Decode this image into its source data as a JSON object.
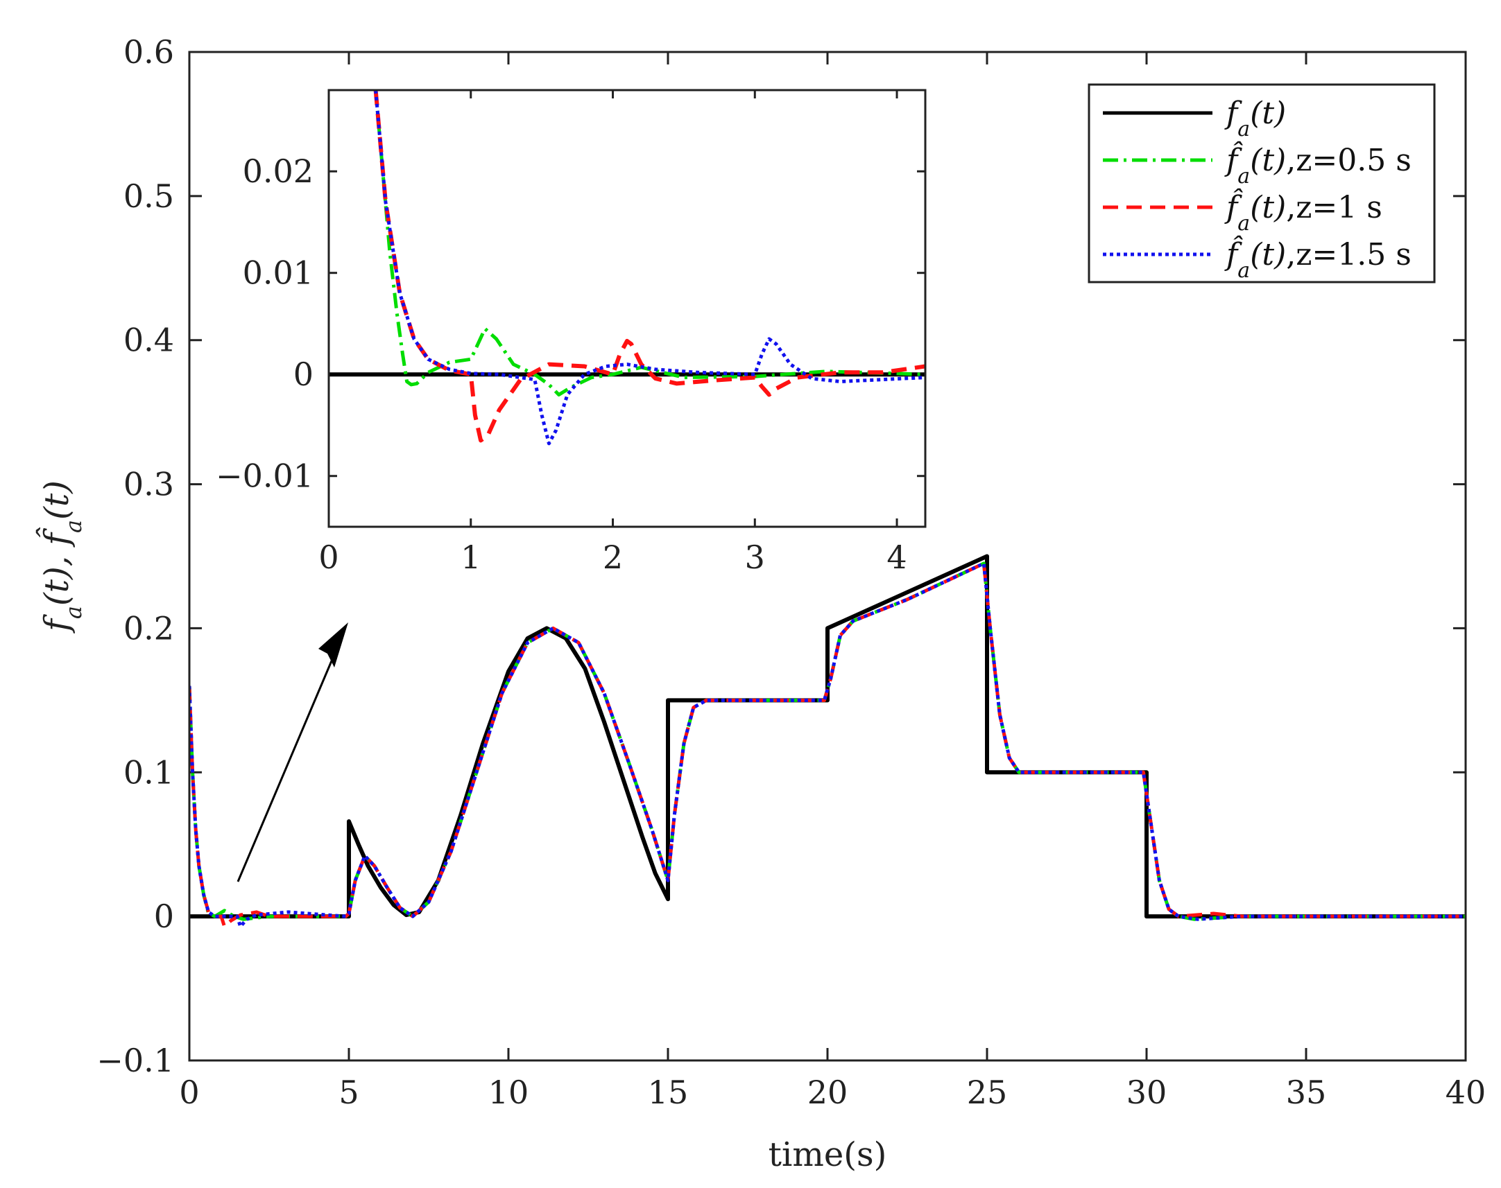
{
  "chart_data": [
    {
      "type": "line",
      "role": "main",
      "xlabel": "time(s)",
      "ylabel": "f_a(t), f̂_a(t)",
      "xlim": [
        0,
        40
      ],
      "ylim": [
        -0.1,
        0.6
      ],
      "xticks": [
        0,
        5,
        10,
        15,
        20,
        25,
        30,
        35,
        40
      ],
      "xtick_labels": [
        "0",
        "5",
        "10",
        "15",
        "20",
        "25",
        "30",
        "35",
        "40"
      ],
      "yticks": [
        -0.1,
        0,
        0.1,
        0.2,
        0.3,
        0.4,
        0.5,
        0.6
      ],
      "ytick_labels": [
        "−0.1",
        "0",
        "0.1",
        "0.2",
        "0.3",
        "0.4",
        "0.5",
        "0.6"
      ],
      "grid": false,
      "legend_position": "top-right",
      "series": [
        {
          "name": "f_a(t)",
          "legend_label": "fₐ(t)",
          "color": "#000000",
          "style": "solid",
          "x": [
            0,
            5,
            5,
            5.3,
            5.6,
            6.0,
            6.4,
            6.8,
            7.2,
            7.8,
            8.5,
            9.2,
            10.0,
            10.6,
            11.2,
            11.8,
            12.4,
            13.0,
            13.6,
            14.2,
            14.6,
            15,
            15,
            20,
            20,
            25,
            25,
            30,
            30,
            40
          ],
          "y": [
            0,
            0,
            0.066,
            0.05,
            0.035,
            0.02,
            0.008,
            0.001,
            0.003,
            0.025,
            0.07,
            0.12,
            0.17,
            0.193,
            0.2,
            0.193,
            0.172,
            0.135,
            0.095,
            0.055,
            0.03,
            0.012,
            0.15,
            0.15,
            0.2,
            0.25,
            0.1,
            0.1,
            0,
            0
          ]
        },
        {
          "name": "f_hat z=0.5",
          "legend_label": "f̂ₐ(t),z=0.5 s",
          "color": "#00dd00",
          "style": "dashdot",
          "x": [
            0,
            0.1,
            0.2,
            0.3,
            0.45,
            0.6,
            0.8,
            1.1,
            1.4,
            1.7,
            2.5,
            4.9,
            5.0,
            5.2,
            5.5,
            5.8,
            6.2,
            6.6,
            7.0,
            7.5,
            8.2,
            9.0,
            9.8,
            10.6,
            11.4,
            12.2,
            13.0,
            13.8,
            14.5,
            15.0,
            15.2,
            15.5,
            15.8,
            16.2,
            17.0,
            19.9,
            20.1,
            20.4,
            20.8,
            22.5,
            24.9,
            25.1,
            25.4,
            25.7,
            26.0,
            27.0,
            29.9,
            30.1,
            30.4,
            30.7,
            31.0,
            31.5,
            33,
            40
          ],
          "y": [
            0.16,
            0.1,
            0.06,
            0.035,
            0.015,
            0.002,
            0,
            0.004,
            0,
            -0.002,
            0,
            0,
            0.002,
            0.025,
            0.042,
            0.035,
            0.02,
            0.006,
            0,
            0.01,
            0.045,
            0.1,
            0.155,
            0.19,
            0.2,
            0.19,
            0.155,
            0.105,
            0.06,
            0.025,
            0.07,
            0.12,
            0.145,
            0.15,
            0.15,
            0.15,
            0.165,
            0.195,
            0.205,
            0.22,
            0.245,
            0.2,
            0.14,
            0.11,
            0.1,
            0.1,
            0.1,
            0.07,
            0.025,
            0.005,
            0,
            -0.002,
            0,
            0
          ]
        },
        {
          "name": "f_hat z=1",
          "legend_label": "f̂ₐ(t),z=1 s",
          "color": "#ff1111",
          "style": "dashed",
          "x": [
            0,
            0.1,
            0.2,
            0.3,
            0.45,
            0.6,
            0.8,
            1.0,
            1.1,
            1.3,
            1.6,
            2.1,
            2.5,
            4.9,
            5.0,
            5.2,
            5.5,
            5.8,
            6.2,
            6.6,
            7.0,
            7.5,
            8.2,
            9.0,
            9.8,
            10.6,
            11.4,
            12.2,
            13.0,
            13.8,
            14.5,
            15.0,
            15.2,
            15.5,
            15.8,
            16.2,
            17.0,
            19.9,
            20.1,
            20.4,
            20.8,
            22.5,
            24.9,
            25.1,
            25.4,
            25.7,
            26.0,
            27.0,
            29.9,
            30.1,
            30.4,
            30.7,
            31.0,
            32.1,
            33,
            40
          ],
          "y": [
            0.16,
            0.1,
            0.06,
            0.035,
            0.015,
            0.003,
            0,
            0,
            -0.007,
            -0.003,
            0.001,
            0.003,
            0,
            0,
            0.002,
            0.025,
            0.042,
            0.035,
            0.02,
            0.006,
            0,
            0.01,
            0.045,
            0.1,
            0.155,
            0.19,
            0.2,
            0.19,
            0.155,
            0.105,
            0.06,
            0.025,
            0.07,
            0.12,
            0.145,
            0.15,
            0.15,
            0.15,
            0.165,
            0.195,
            0.205,
            0.22,
            0.245,
            0.2,
            0.14,
            0.11,
            0.1,
            0.1,
            0.1,
            0.07,
            0.025,
            0.005,
            0,
            0.002,
            0,
            0
          ]
        },
        {
          "name": "f_hat z=1.5",
          "legend_label": "f̂ₐ(t),z=1.5 s",
          "color": "#1111ee",
          "style": "dotted",
          "x": [
            0,
            0.1,
            0.2,
            0.3,
            0.45,
            0.6,
            0.8,
            1.2,
            1.5,
            1.6,
            1.8,
            2.1,
            3.1,
            4.9,
            5.0,
            5.2,
            5.5,
            5.8,
            6.2,
            6.6,
            7.0,
            7.5,
            8.2,
            9.0,
            9.8,
            10.6,
            11.4,
            12.2,
            13.0,
            13.8,
            14.5,
            15.0,
            15.2,
            15.5,
            15.8,
            16.2,
            17.0,
            19.9,
            20.1,
            20.4,
            20.8,
            22.5,
            24.9,
            25.1,
            25.4,
            25.7,
            26.0,
            27.0,
            29.9,
            30.1,
            30.4,
            30.7,
            31.0,
            31.6,
            33,
            40
          ],
          "y": [
            0.16,
            0.1,
            0.06,
            0.035,
            0.015,
            0.003,
            0,
            0,
            0,
            -0.007,
            -0.002,
            0.001,
            0.003,
            0,
            0.002,
            0.025,
            0.042,
            0.035,
            0.02,
            0.006,
            0,
            0.01,
            0.045,
            0.1,
            0.155,
            0.19,
            0.2,
            0.19,
            0.155,
            0.105,
            0.06,
            0.025,
            0.07,
            0.12,
            0.145,
            0.15,
            0.15,
            0.15,
            0.165,
            0.195,
            0.205,
            0.22,
            0.245,
            0.2,
            0.14,
            0.11,
            0.1,
            0.1,
            0.1,
            0.07,
            0.025,
            0.005,
            0,
            -0.002,
            0,
            0
          ]
        }
      ]
    },
    {
      "type": "line",
      "role": "inset",
      "xlim": [
        0,
        4.2
      ],
      "ylim": [
        -0.015,
        0.028
      ],
      "xticks": [
        0,
        1,
        2,
        3,
        4
      ],
      "xtick_labels": [
        "0",
        "1",
        "2",
        "3",
        "4"
      ],
      "yticks": [
        -0.01,
        0,
        0.01,
        0.02
      ],
      "ytick_labels": [
        "−0.01",
        "0",
        "0.01",
        "0.02"
      ],
      "grid": false,
      "series": [
        {
          "name": "f_a(t)",
          "color": "#000000",
          "style": "solid",
          "x": [
            0,
            4.2
          ],
          "y": [
            0,
            0
          ]
        },
        {
          "name": "f_hat z=0.5",
          "color": "#00dd00",
          "style": "dashdot",
          "x": [
            0.33,
            0.38,
            0.43,
            0.48,
            0.52,
            0.55,
            0.58,
            0.62,
            0.7,
            0.85,
            1.0,
            1.05,
            1.1,
            1.18,
            1.3,
            1.45,
            1.55,
            1.62,
            1.7,
            1.85,
            2.0,
            2.2,
            2.5,
            3.0,
            3.5,
            4.2
          ],
          "y": [
            0.028,
            0.02,
            0.012,
            0.006,
            0.002,
            -0.0007,
            -0.001,
            -0.0009,
            0.0002,
            0.0012,
            0.0015,
            0.003,
            0.0045,
            0.0035,
            0.001,
            0,
            -0.001,
            -0.002,
            -0.0013,
            -0.0003,
            0,
            0.0007,
            -0.0003,
            -0.0002,
            0.0003,
            0
          ]
        },
        {
          "name": "f_hat z=1",
          "color": "#ff1111",
          "style": "dashed",
          "x": [
            0.33,
            0.4,
            0.5,
            0.6,
            0.7,
            0.85,
            1.0,
            1.03,
            1.07,
            1.12,
            1.2,
            1.35,
            1.55,
            1.8,
            2.0,
            2.05,
            2.1,
            2.13,
            2.2,
            2.3,
            2.45,
            2.7,
            3.0,
            3.05,
            3.1,
            3.15,
            3.3,
            3.6,
            3.9,
            4.2
          ],
          "y": [
            0.028,
            0.017,
            0.008,
            0.0035,
            0.0015,
            0.0004,
            0,
            -0.004,
            -0.0065,
            -0.006,
            -0.0035,
            -0.0005,
            0.001,
            0.0008,
            0,
            0.002,
            0.0033,
            0.003,
            0.001,
            -0.0004,
            -0.0009,
            -0.0006,
            -0.0003,
            -0.0012,
            -0.002,
            -0.0014,
            -0.0003,
            0.0002,
            0.0002,
            0.0008
          ]
        },
        {
          "name": "f_hat z=1.5",
          "color": "#1111ee",
          "style": "dotted",
          "x": [
            0.33,
            0.4,
            0.5,
            0.6,
            0.7,
            0.85,
            1.0,
            1.2,
            1.45,
            1.5,
            1.55,
            1.6,
            1.68,
            1.8,
            1.95,
            2.1,
            2.3,
            2.6,
            3.0,
            3.05,
            3.1,
            3.15,
            3.25,
            3.4,
            3.6,
            3.9,
            4.2
          ],
          "y": [
            0.028,
            0.017,
            0.008,
            0.0035,
            0.0015,
            0.0005,
            0.0001,
            0,
            -0.0005,
            -0.004,
            -0.0068,
            -0.0055,
            -0.002,
            0,
            0.0008,
            0.001,
            0.0005,
            0.0002,
            0,
            0.002,
            0.0035,
            0.003,
            0.001,
            -0.0004,
            -0.0007,
            -0.0005,
            -0.0003
          ]
        }
      ]
    }
  ]
}
